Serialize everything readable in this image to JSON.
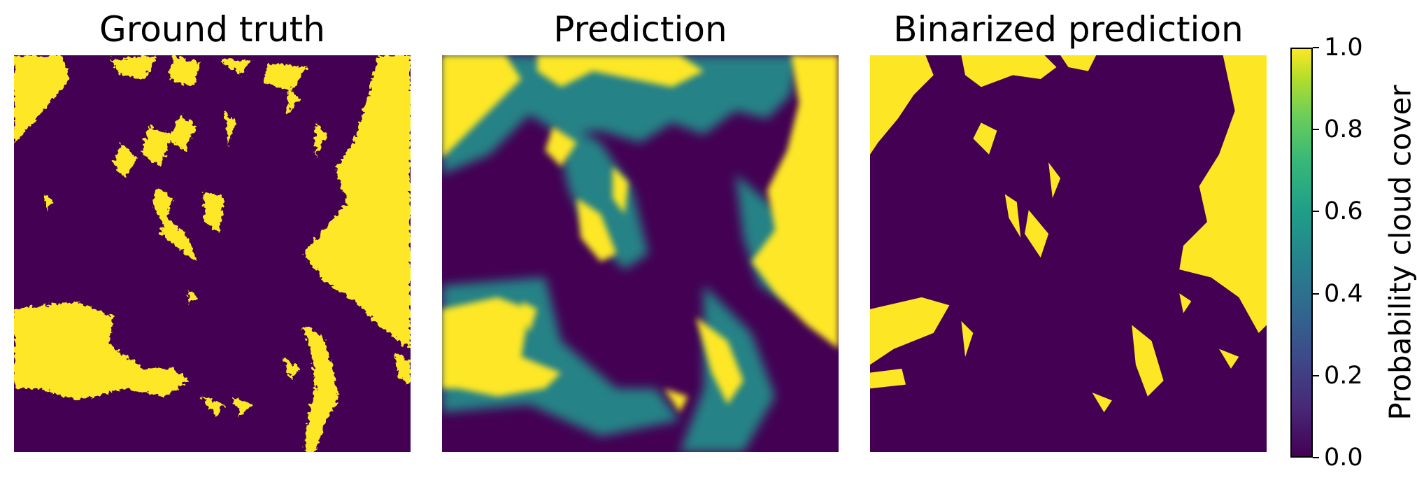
{
  "chart_data": {
    "type": "heatmap",
    "panels": [
      {
        "title": "Ground truth",
        "kind": "binary"
      },
      {
        "title": "Prediction",
        "kind": "continuous"
      },
      {
        "title": "Binarized prediction",
        "kind": "binary"
      }
    ],
    "colormap": "viridis",
    "colors": {
      "low": "#440154",
      "high": "#fde725",
      "mid": "#21918c"
    },
    "colorbar": {
      "label": "Probability cloud cover",
      "range": [
        0.0,
        1.0
      ],
      "ticks": [
        "0.0",
        "0.2",
        "0.4",
        "0.6",
        "0.8",
        "1.0"
      ]
    }
  }
}
